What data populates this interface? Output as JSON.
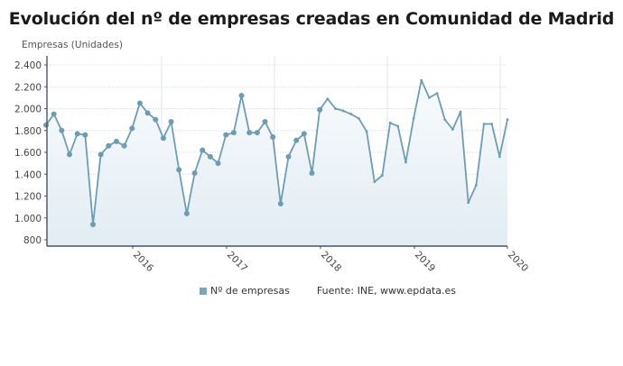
{
  "header": {
    "title": "Evolución del nº de empresas creadas en Comunidad de Madrid",
    "ylabel": "Empresas (Unidades)"
  },
  "legend": {
    "series_label": "Nº de empresas",
    "source": "Fuente: INE, www.epdata.es"
  },
  "colors": {
    "line": "#6e9db3",
    "marker": "#6e9db3",
    "area_top": "#f7fafc",
    "area_bottom": "#e2edf4",
    "grid": "#c9d3da",
    "axis": "#4a5560"
  },
  "chart_data": {
    "type": "area",
    "title": "Evolución del nº de empresas creadas en Comunidad de Madrid",
    "xlabel": "",
    "ylabel": "Empresas (Unidades)",
    "ylim": [
      800,
      2400
    ],
    "yticks": [
      "800",
      "1.000",
      "1.200",
      "1.400",
      "1.600",
      "1.800",
      "2.000",
      "2.200",
      "2.400"
    ],
    "ytick_values": [
      800,
      1000,
      1200,
      1400,
      1600,
      1800,
      2000,
      2200,
      2400
    ],
    "xticks": [
      "2016",
      "2017",
      "2018",
      "2019",
      "2020"
    ],
    "x_start": "2015-02",
    "x_end": "2020-01",
    "grid": true,
    "legend_position": "bottom",
    "series": [
      {
        "name": "Nº de empresas",
        "values": [
          1850,
          1950,
          1800,
          1580,
          1770,
          1760,
          940,
          1580,
          1660,
          1700,
          1660,
          1820,
          2050,
          1960,
          1900,
          1730,
          1880,
          1440,
          1040,
          1410,
          1620,
          1560,
          1500,
          1760,
          1780,
          2120,
          1780,
          1780,
          1880,
          1740,
          1130,
          1560,
          1710,
          1770,
          1410,
          1990,
          2090,
          2000,
          1980,
          1950,
          1910,
          1790,
          1330,
          1390,
          1870,
          1840,
          1510,
          1910,
          2260,
          2100,
          2140,
          1900,
          1810,
          1970,
          1140,
          1300,
          1860,
          1860,
          1560,
          1900
        ]
      }
    ]
  }
}
